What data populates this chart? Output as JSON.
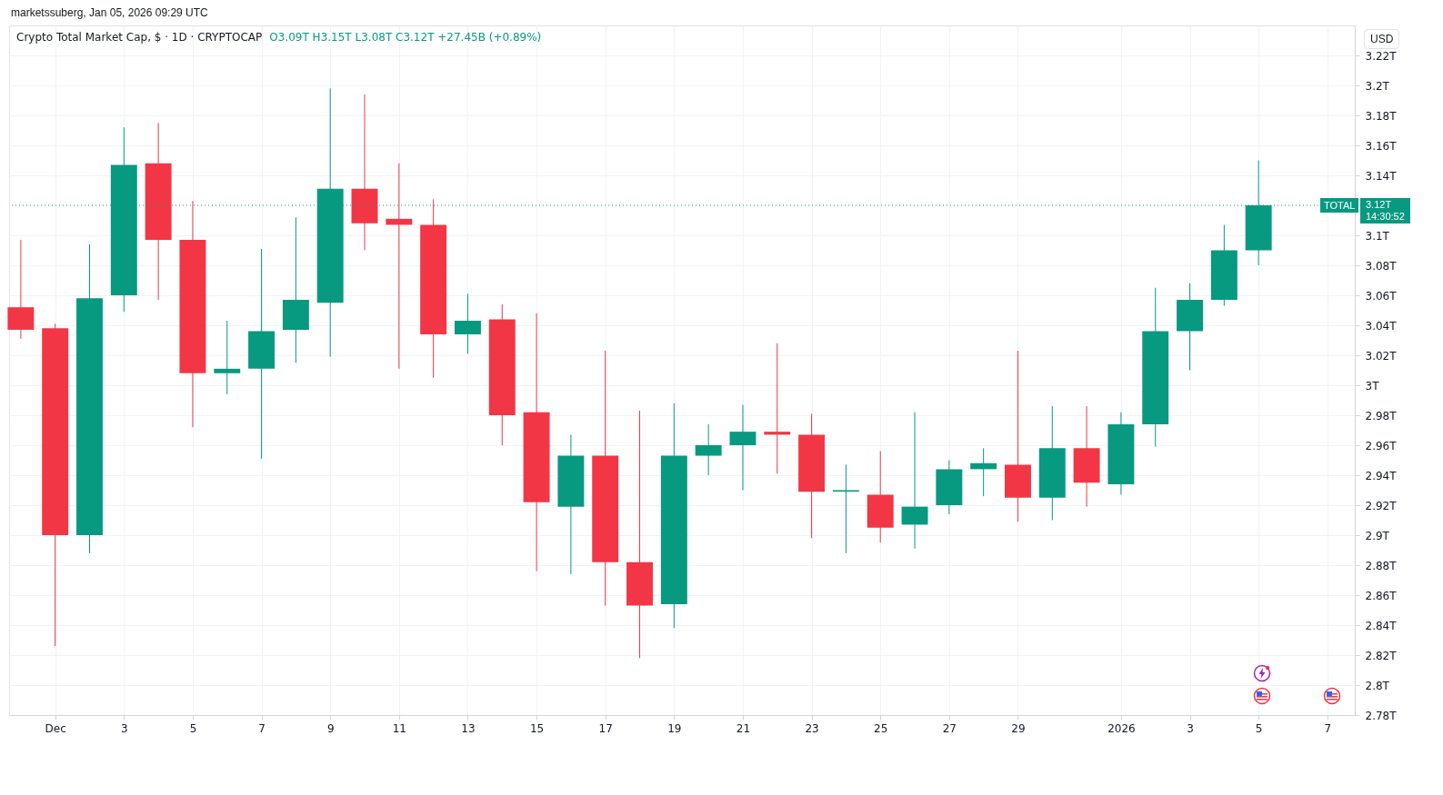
{
  "chart_data": {
    "type": "candlestick",
    "title": "Crypto Total Market Cap, $ · 1D · CRYPTOCAP",
    "subtitle": "O3.09T H3.15T L3.08T C3.12T +27.45B (+0.89%)",
    "annotations": [
      "marketssuberg, Jan 05, 2026 09:29 UTC",
      "USD",
      "3.12T",
      "14:30:52"
    ],
    "x": [
      "2025-11-30",
      "2025-12-01",
      "2025-12-02",
      "2025-12-03",
      "2025-12-04",
      "2025-12-05",
      "2025-12-06",
      "2025-12-07",
      "2025-12-08",
      "2025-12-09",
      "2025-12-10",
      "2025-12-11",
      "2025-12-12",
      "2025-12-13",
      "2025-12-14",
      "2025-12-15",
      "2025-12-16",
      "2025-12-17",
      "2025-12-18",
      "2025-12-19",
      "2025-12-20",
      "2025-12-21",
      "2025-12-22",
      "2025-12-23",
      "2025-12-24",
      "2025-12-25",
      "2025-12-26",
      "2025-12-27",
      "2025-12-28",
      "2025-12-29",
      "2025-12-30",
      "2025-12-31",
      "2026-01-01",
      "2026-01-02",
      "2026-01-03",
      "2026-01-04",
      "2026-01-05"
    ],
    "ohlc": [
      [
        3.052,
        3.097,
        3.031,
        3.037
      ],
      [
        3.038,
        3.041,
        2.826,
        2.9
      ],
      [
        2.9,
        3.094,
        2.888,
        3.058
      ],
      [
        3.06,
        3.172,
        3.049,
        3.147
      ],
      [
        3.148,
        3.175,
        3.057,
        3.097
      ],
      [
        3.097,
        3.123,
        2.972,
        3.008
      ],
      [
        3.008,
        3.043,
        2.994,
        3.011
      ],
      [
        3.011,
        3.091,
        2.951,
        3.036
      ],
      [
        3.037,
        3.112,
        3.015,
        3.057
      ],
      [
        3.055,
        3.198,
        3.019,
        3.131
      ],
      [
        3.131,
        3.194,
        3.09,
        3.108
      ],
      [
        3.111,
        3.148,
        3.011,
        3.107
      ],
      [
        3.107,
        3.124,
        3.005,
        3.034
      ],
      [
        3.034,
        3.061,
        3.021,
        3.043
      ],
      [
        3.044,
        3.054,
        2.96,
        2.98
      ],
      [
        2.982,
        3.048,
        2.876,
        2.922
      ],
      [
        2.919,
        2.967,
        2.874,
        2.953
      ],
      [
        2.953,
        3.023,
        2.853,
        2.882
      ],
      [
        2.882,
        2.983,
        2.818,
        2.853
      ],
      [
        2.854,
        2.988,
        2.838,
        2.953
      ],
      [
        2.953,
        2.974,
        2.94,
        2.96
      ],
      [
        2.96,
        2.987,
        2.93,
        2.969
      ],
      [
        2.969,
        3.028,
        2.941,
        2.967
      ],
      [
        2.967,
        2.981,
        2.898,
        2.929
      ],
      [
        2.929,
        2.947,
        2.888,
        2.93
      ],
      [
        2.927,
        2.956,
        2.895,
        2.905
      ],
      [
        2.907,
        2.982,
        2.891,
        2.919
      ],
      [
        2.92,
        2.95,
        2.914,
        2.944
      ],
      [
        2.944,
        2.958,
        2.926,
        2.948
      ],
      [
        2.947,
        3.023,
        2.909,
        2.925
      ],
      [
        2.925,
        2.986,
        2.91,
        2.958
      ],
      [
        2.958,
        2.986,
        2.919,
        2.935
      ],
      [
        2.934,
        2.982,
        2.927,
        2.974
      ],
      [
        2.974,
        3.065,
        2.959,
        3.036
      ],
      [
        3.036,
        3.068,
        3.01,
        3.057
      ],
      [
        3.057,
        3.107,
        3.053,
        3.09
      ],
      [
        3.09,
        3.15,
        3.08,
        3.12
      ]
    ],
    "colors": [
      "#f23645",
      "#f23645",
      "#089981",
      "#089981",
      "#f23645",
      "#f23645",
      "#089981",
      "#089981",
      "#089981",
      "#089981",
      "#f23645",
      "#f23645",
      "#f23645",
      "#089981",
      "#f23645",
      "#f23645",
      "#089981",
      "#f23645",
      "#f23645",
      "#089981",
      "#089981",
      "#089981",
      "#f23645",
      "#f23645",
      "#089981",
      "#f23645",
      "#089981",
      "#089981",
      "#089981",
      "#f23645",
      "#089981",
      "#f23645",
      "#089981",
      "#089981",
      "#089981",
      "#089981",
      "#089981"
    ],
    "xlim": [
      "2025-11-29T19:00",
      "2026-01-07T16:00"
    ],
    "xticks": [
      {
        "value": "2025-12-01",
        "label": "Dec"
      },
      {
        "value": "2025-12-03",
        "label": "3"
      },
      {
        "value": "2025-12-05",
        "label": "5"
      },
      {
        "value": "2025-12-07",
        "label": "7"
      },
      {
        "value": "2025-12-09",
        "label": "9"
      },
      {
        "value": "2025-12-11",
        "label": "11"
      },
      {
        "value": "2025-12-13",
        "label": "13"
      },
      {
        "value": "2025-12-15",
        "label": "15"
      },
      {
        "value": "2025-12-17",
        "label": "17"
      },
      {
        "value": "2025-12-19",
        "label": "19"
      },
      {
        "value": "2025-12-21",
        "label": "21"
      },
      {
        "value": "2025-12-23",
        "label": "23"
      },
      {
        "value": "2025-12-25",
        "label": "25"
      },
      {
        "value": "2025-12-27",
        "label": "27"
      },
      {
        "value": "2025-12-29",
        "label": "29"
      },
      {
        "value": "2026-01-01",
        "label": "2026"
      },
      {
        "value": "2026-01-03",
        "label": "3"
      },
      {
        "value": "2026-01-05",
        "label": "5"
      },
      {
        "value": "2026-01-07",
        "label": "7"
      }
    ],
    "ylim": [
      2.78,
      3.24
    ],
    "yticks": [
      {
        "value": 2.78,
        "label": "2.78T"
      },
      {
        "value": 2.8,
        "label": "2.8T"
      },
      {
        "value": 2.82,
        "label": "2.82T"
      },
      {
        "value": 2.84,
        "label": "2.84T"
      },
      {
        "value": 2.86,
        "label": "2.86T"
      },
      {
        "value": 2.88,
        "label": "2.88T"
      },
      {
        "value": 2.9,
        "label": "2.9T"
      },
      {
        "value": 2.92,
        "label": "2.92T"
      },
      {
        "value": 2.94,
        "label": "2.94T"
      },
      {
        "value": 2.96,
        "label": "2.96T"
      },
      {
        "value": 2.98,
        "label": "2.98T"
      },
      {
        "value": 3.0,
        "label": "3T"
      },
      {
        "value": 3.02,
        "label": "3.02T"
      },
      {
        "value": 3.04,
        "label": "3.04T"
      },
      {
        "value": 3.06,
        "label": "3.06T"
      },
      {
        "value": 3.08,
        "label": "3.08T"
      },
      {
        "value": 3.1,
        "label": "3.1T"
      },
      {
        "value": 3.14,
        "label": "3.14T"
      },
      {
        "value": 3.16,
        "label": "3.16T"
      },
      {
        "value": 3.18,
        "label": "3.18T"
      },
      {
        "value": 3.2,
        "label": "3.2T"
      },
      {
        "value": 3.22,
        "label": "3.22T"
      }
    ],
    "ref_lines": [
      {
        "axis": "y",
        "value": 3.12,
        "label": "TOTAL",
        "color": "#089981",
        "line_style": "dotted"
      }
    ],
    "grid": true
  }
}
